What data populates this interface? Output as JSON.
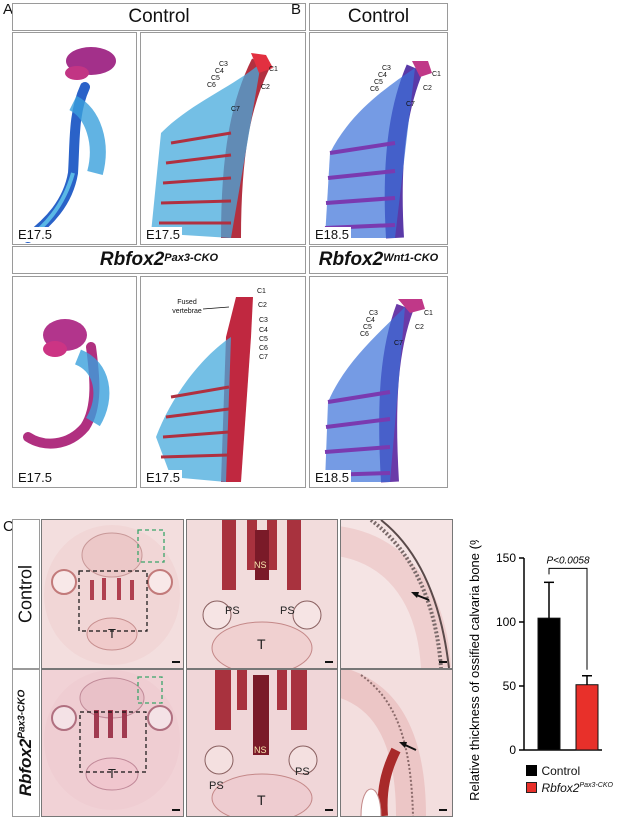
{
  "panels": {
    "A": {
      "letter": "A",
      "control_title": "Control",
      "mutant_title_base": "Rbfox2",
      "mutant_title_sup": "Pax3-CKO",
      "stages": [
        "E17.5",
        "E17.5",
        "E17.5",
        "E17.5"
      ],
      "control_vertebrae": [
        "C1",
        "C2",
        "C3",
        "C4",
        "C5",
        "C6",
        "C7"
      ],
      "mutant_annotation": "Fused vertebrae",
      "mutant_vertebrae": [
        "C1",
        "C2",
        "C3",
        "C4",
        "C5",
        "C6",
        "C7"
      ]
    },
    "B": {
      "letter": "B",
      "control_title": "Control",
      "mutant_title_base": "Rbfox2",
      "mutant_title_sup": "Wnt1-CKO",
      "stages": [
        "E18.5",
        "E18.5"
      ],
      "control_vertebrae": [
        "C1",
        "C2",
        "C3",
        "C4",
        "C5",
        "C6",
        "C7"
      ],
      "mutant_vertebrae": [
        "C1",
        "C2",
        "C3",
        "C4",
        "C5",
        "C6",
        "C7"
      ]
    },
    "C": {
      "letter": "C",
      "row_control": "Control",
      "row_mutant_base": "Rbfox2",
      "row_mutant_sup": "Pax3-CKO",
      "label_T": "T",
      "label_PS": "PS",
      "label_NS": "NS"
    }
  },
  "chart_data": {
    "type": "bar",
    "categories": [
      "Control",
      "Rbfox2 Pax3-CKO"
    ],
    "values": [
      103,
      51
    ],
    "errors": [
      28,
      7
    ],
    "ylabel": "Relative thickness of ossified calvaria bone (%)",
    "ylim": [
      0,
      150
    ],
    "yticks": [
      0,
      50,
      100,
      150
    ],
    "annotation": "P<0.0058",
    "legend": [
      {
        "label": "Control",
        "color": "#000000"
      },
      {
        "label_base": "Rbfox2",
        "label_sup": "Pax3-CKO",
        "color": "#e8302a"
      }
    ],
    "colors": [
      "#000000",
      "#e8302a"
    ]
  }
}
